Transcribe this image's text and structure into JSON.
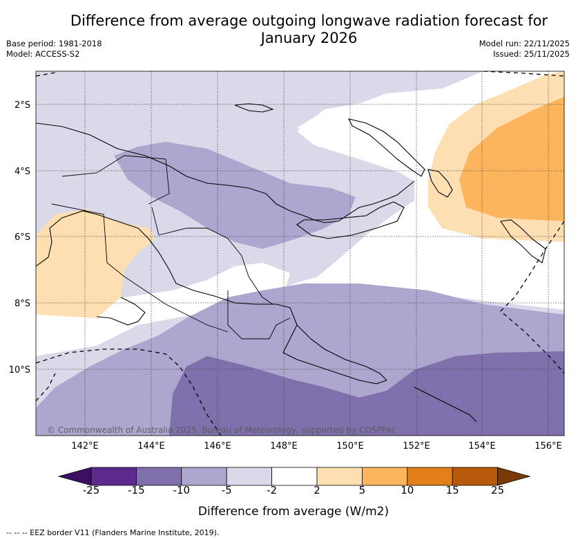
{
  "header": {
    "title_line1": "Difference from average outgoing longwave radiation forecast for",
    "title_line2": "January 2026",
    "base_period": "Base period: 1981-2018",
    "model": "Model: ACCESS-S2",
    "model_run": "Model run: 22/11/2025",
    "issued": "Issued: 25/11/2025"
  },
  "map": {
    "region": "Papua New Guinea",
    "copyright": "© Commonwealth of Australia 2025, Bureau of Meteorology, supported by COSPPac",
    "lat_labels": [
      "2°S",
      "4°S",
      "6°S",
      "8°S",
      "10°S"
    ],
    "lon_labels": [
      "142°E",
      "144°E",
      "146°E",
      "148°E",
      "150°E",
      "152°E",
      "154°E",
      "156°E"
    ]
  },
  "colorbar": {
    "title": "Difference from average (W/m2)",
    "labels": [
      "-25",
      "-15",
      "-10",
      "-5",
      "-2",
      "2",
      "5",
      "10",
      "15",
      "25"
    ],
    "colors": {
      "lt_neg25": "#3d0f62",
      "neg25_neg15": "#5b2a8c",
      "neg15_neg10": "#7f70ab",
      "neg10_neg5": "#ada6cf",
      "neg5_neg2": "#d9d9ea",
      "neg2_2": "#ffffff",
      "2_5": "#fddfb1",
      "5_10": "#fcb55c",
      "10_15": "#e2811a",
      "15_25": "#b45a0a",
      "gt_25": "#7a3a06"
    }
  },
  "footnote": "-- -- -- EEZ border V11 (Flanders Marine Institute, 2019)."
}
